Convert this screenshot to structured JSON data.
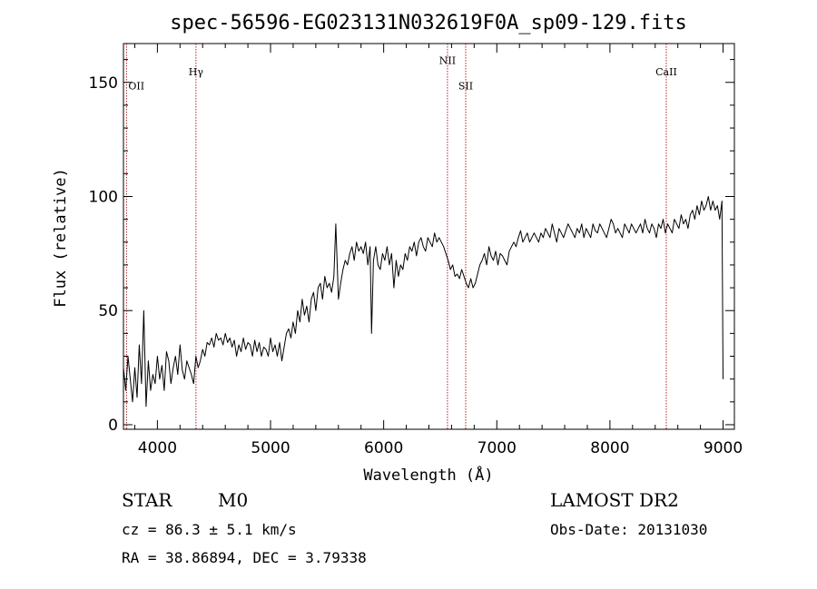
{
  "chart_data": {
    "type": "line",
    "title": "spec-56596-EG023131N032619F0A_sp09-129.fits",
    "xlabel": "Wavelength (Å)",
    "ylabel": "Flux (relative)",
    "xlim": [
      3700,
      9100
    ],
    "ylim": [
      -2,
      167
    ],
    "xticks": [
      4000,
      5000,
      6000,
      7000,
      8000,
      9000
    ],
    "yticks": [
      0,
      50,
      100,
      150
    ],
    "grid": false,
    "line_color": "#000000",
    "marker_color": "#b22222",
    "spectral_lines": [
      {
        "label": "OII",
        "x": 3727,
        "label_y": 147
      },
      {
        "label": "Hγ",
        "x": 4341,
        "label_y": 153
      },
      {
        "label": "NII",
        "x": 6564,
        "label_y": 158
      },
      {
        "label": "SII",
        "x": 6725,
        "label_y": 147
      },
      {
        "label": "CaII",
        "x": 8498,
        "label_y": 153
      }
    ],
    "series": [
      {
        "x": [
          3700,
          3720,
          3740,
          3760,
          3780,
          3800,
          3820,
          3840,
          3860,
          3880,
          3900,
          3920,
          3940,
          3960,
          3980,
          4000,
          4020,
          4040,
          4060,
          4080,
          4100,
          4120,
          4140,
          4160,
          4180,
          4200,
          4220,
          4240,
          4260,
          4280,
          4300,
          4320,
          4340,
          4360,
          4380,
          4400,
          4420,
          4440,
          4460,
          4480,
          4500,
          4520,
          4540,
          4560,
          4580,
          4600,
          4620,
          4640,
          4660,
          4680,
          4700,
          4720,
          4740,
          4760,
          4780,
          4800,
          4820,
          4840,
          4860,
          4880,
          4900,
          4920,
          4940,
          4960,
          4980,
          5000,
          5020,
          5040,
          5060,
          5080,
          5100,
          5120,
          5140,
          5160,
          5180,
          5200,
          5220,
          5240,
          5260,
          5280,
          5300,
          5320,
          5340,
          5360,
          5380,
          5400,
          5420,
          5440,
          5460,
          5480,
          5500,
          5520,
          5540,
          5560,
          5577,
          5600,
          5620,
          5640,
          5660,
          5680,
          5700,
          5720,
          5740,
          5760,
          5780,
          5800,
          5820,
          5840,
          5860,
          5880,
          5893,
          5910,
          5930,
          5950,
          5970,
          5990,
          6010,
          6030,
          6050,
          6070,
          6090,
          6110,
          6130,
          6150,
          6170,
          6190,
          6210,
          6230,
          6250,
          6270,
          6290,
          6310,
          6330,
          6350,
          6370,
          6390,
          6410,
          6430,
          6450,
          6470,
          6490,
          6510,
          6530,
          6550,
          6570,
          6590,
          6610,
          6630,
          6650,
          6670,
          6690,
          6710,
          6730,
          6750,
          6770,
          6790,
          6810,
          6830,
          6850,
          6870,
          6890,
          6910,
          6930,
          6950,
          6970,
          6990,
          7010,
          7030,
          7050,
          7070,
          7090,
          7110,
          7130,
          7150,
          7170,
          7190,
          7210,
          7230,
          7250,
          7270,
          7290,
          7310,
          7330,
          7350,
          7370,
          7390,
          7410,
          7430,
          7450,
          7470,
          7490,
          7510,
          7530,
          7550,
          7570,
          7590,
          7610,
          7630,
          7650,
          7670,
          7690,
          7710,
          7730,
          7750,
          7770,
          7790,
          7810,
          7830,
          7850,
          7870,
          7890,
          7910,
          7930,
          7950,
          7970,
          7990,
          8010,
          8030,
          8050,
          8070,
          8090,
          8110,
          8130,
          8150,
          8170,
          8190,
          8210,
          8230,
          8250,
          8270,
          8290,
          8310,
          8330,
          8350,
          8370,
          8390,
          8410,
          8430,
          8450,
          8470,
          8490,
          8510,
          8530,
          8550,
          8570,
          8590,
          8610,
          8630,
          8650,
          8670,
          8690,
          8710,
          8730,
          8750,
          8770,
          8790,
          8810,
          8830,
          8850,
          8870,
          8890,
          8910,
          8930,
          8950,
          8970,
          8990,
          9000
        ],
        "y": [
          25,
          15,
          30,
          20,
          10,
          25,
          12,
          35,
          18,
          50,
          8,
          28,
          15,
          22,
          18,
          30,
          20,
          26,
          15,
          32,
          28,
          18,
          25,
          30,
          22,
          35,
          24,
          20,
          28,
          25,
          22,
          18,
          30,
          25,
          28,
          33,
          30,
          36,
          35,
          38,
          34,
          40,
          37,
          38,
          35,
          40,
          36,
          38,
          34,
          37,
          30,
          35,
          32,
          38,
          33,
          36,
          35,
          30,
          37,
          32,
          36,
          30,
          34,
          33,
          30,
          38,
          32,
          35,
          30,
          36,
          28,
          34,
          40,
          42,
          38,
          45,
          40,
          50,
          45,
          55,
          48,
          52,
          45,
          55,
          58,
          50,
          60,
          62,
          55,
          65,
          60,
          62,
          58,
          65,
          88,
          55,
          62,
          68,
          72,
          70,
          75,
          78,
          72,
          80,
          76,
          78,
          75,
          80,
          70,
          78,
          40,
          72,
          78,
          70,
          68,
          75,
          72,
          78,
          70,
          75,
          60,
          72,
          65,
          70,
          68,
          75,
          72,
          78,
          76,
          80,
          74,
          80,
          82,
          78,
          76,
          82,
          80,
          78,
          84,
          80,
          82,
          80,
          78,
          75,
          72,
          68,
          70,
          65,
          66,
          64,
          68,
          65,
          62,
          60,
          64,
          60,
          62,
          66,
          70,
          72,
          75,
          70,
          78,
          74,
          72,
          76,
          70,
          75,
          74,
          72,
          70,
          76,
          78,
          80,
          78,
          82,
          85,
          80,
          82,
          84,
          80,
          82,
          84,
          82,
          80,
          84,
          82,
          86,
          84,
          82,
          88,
          84,
          80,
          86,
          84,
          82,
          85,
          88,
          86,
          84,
          82,
          86,
          84,
          88,
          82,
          86,
          84,
          82,
          88,
          85,
          84,
          88,
          86,
          84,
          82,
          86,
          90,
          88,
          84,
          86,
          84,
          82,
          88,
          86,
          84,
          88,
          86,
          84,
          86,
          88,
          84,
          90,
          86,
          84,
          88,
          86,
          82,
          88,
          86,
          90,
          84,
          88,
          86,
          84,
          90,
          88,
          86,
          92,
          88,
          90,
          86,
          92,
          94,
          90,
          96,
          92,
          98,
          94,
          96,
          100,
          94,
          98,
          94,
          96,
          90,
          98,
          20
        ]
      }
    ]
  },
  "footer": {
    "object_class": "STAR",
    "subclass": "M0",
    "survey": "LAMOST DR2",
    "cz": "cz = 86.3 ± 5.1 km/s",
    "obs_date": "Obs-Date: 20131030",
    "coords": "RA =  38.86894, DEC =   3.79338"
  }
}
